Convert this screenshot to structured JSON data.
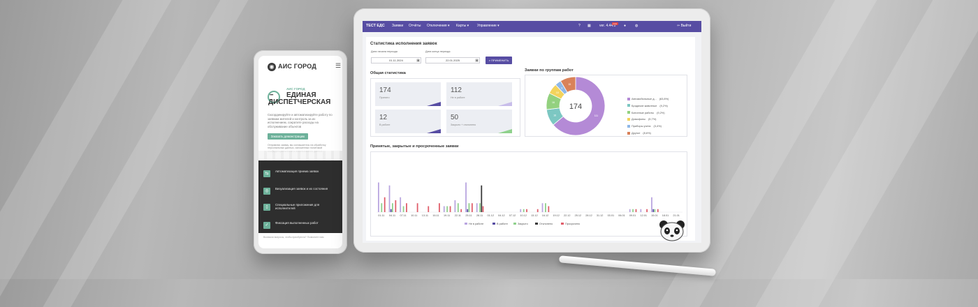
{
  "phone": {
    "logo": "АИС ГОРОД",
    "hero_kicker": "АИС ГОРОД",
    "hero_title_1": "ЕДИНАЯ",
    "hero_title_2": "ДИСПЕТЧЕРСКАЯ",
    "description": "Скоординируйте и автоматизируйте работу по заявкам жителей и контроль за их исполнением, сократите расходы на обслуживание объектов",
    "demo_button": "Заказать демонстрацию",
    "consent": "Отправляя заявку, вы соглашаетесь на обработку персональных данных, изложенных политикой конфиденциальности и использования данных",
    "features": [
      {
        "label": "Автоматизация приема заявок",
        "icon": "route-icon"
      },
      {
        "label": "Визуализация заявок и их состояния",
        "icon": "eye-icon"
      },
      {
        "label": "Специальные приложения для исполнителей",
        "icon": "phone-icon"
      },
      {
        "label": "Фиксация выполненных работ",
        "icon": "check-icon"
      }
    ],
    "footer": "Возникли вопросы, чтобы приобрести? Позвоните нам"
  },
  "app": {
    "nav": {
      "brand": "ТЕСТ ЕДС",
      "items": [
        "Заявки",
        "Отчёты",
        "Отключения ▾",
        "Карты ▾",
        "Управление ▾"
      ],
      "version": "ver. 4.44.0",
      "version_badge": "new",
      "logout": "Выйти"
    },
    "page_title": "Статистика исполнения заявок",
    "filters": {
      "start_label": "Дата начала периода",
      "start_value": "01.11.2024",
      "end_label": "Дата конца периода",
      "end_value": "22.01.2025",
      "apply_button": "ПРИМЕНИТЬ"
    },
    "general": {
      "title": "Общая статистика",
      "stats": [
        {
          "value": "174",
          "label": "Принято"
        },
        {
          "value": "112",
          "label": "Не в работе"
        },
        {
          "value": "12",
          "label": "В работе"
        },
        {
          "value": "50",
          "label": "Закрыто + отклонено"
        }
      ]
    },
    "groups": {
      "title": "Заявки по группам работ",
      "total": "174"
    },
    "bars": {
      "title": "Принятые, закрытые и просроченные заявки",
      "legend": [
        "Не в работе",
        "В работе",
        "Закрыто",
        "Отклонено",
        "Просрочено"
      ]
    }
  },
  "colors": {
    "brand": "#574da3",
    "accent_green": "#6db19a",
    "not_in_work": "#b9a6e0",
    "in_work": "#574da3",
    "closed": "#8fd18c",
    "rejected": "#3a3a3a",
    "overdue": "#e05e6b"
  },
  "chart_data": [
    {
      "type": "pie",
      "title": "Заявки по группам работ",
      "center_label": "174",
      "categories": [
        "Автомобильные д...",
        "Бродячие животные",
        "Батонные работы",
        "Домофоны",
        "Приборы учета",
        "Другое"
      ],
      "values": [
        63.8,
        9.2,
        9.2,
        5.7,
        3.4,
        8.6
      ],
      "value_labels": [
        "(63,8%)",
        "(9,2%)",
        "(9,2%)",
        "(5,7%)",
        "(3,4%)",
        "(8,6%)"
      ],
      "slice_labels": [
        "111",
        "16",
        "16",
        "10",
        "6",
        "15"
      ],
      "colors": [
        "#b48ad6",
        "#7cc7c2",
        "#93d17f",
        "#f3d35c",
        "#8fb8e8",
        "#d9825a"
      ]
    },
    {
      "type": "bar",
      "title": "Принятые, закрытые и просроченные заявки",
      "categories": [
        "01.11",
        "04.11",
        "07.11",
        "10.11",
        "13.11",
        "16.11",
        "19.11",
        "22.11",
        "25.11",
        "28.11",
        "01.12",
        "04.12",
        "07.12",
        "10.12",
        "13.12",
        "16.12",
        "19.12",
        "22.12",
        "25.12",
        "28.12",
        "31.12",
        "03.01",
        "06.01",
        "09.01",
        "12.01",
        "15.01",
        "18.01",
        "21.01"
      ],
      "series": [
        {
          "name": "Не в работе",
          "values": [
            10,
            9,
            5,
            0,
            0,
            0,
            2,
            4,
            10,
            3,
            0,
            0,
            0,
            1,
            0,
            3,
            0,
            0,
            0,
            0,
            0,
            0,
            0,
            1,
            1,
            5,
            0,
            0
          ]
        },
        {
          "name": "В работе",
          "values": [
            0,
            1,
            0,
            0,
            0,
            0,
            0,
            0,
            1,
            0,
            0,
            0,
            0,
            0,
            0,
            0,
            0,
            0,
            0,
            0,
            0,
            0,
            0,
            0,
            0,
            1,
            0,
            0
          ]
        },
        {
          "name": "Закрыто",
          "values": [
            3,
            3,
            2,
            0,
            0,
            0,
            2,
            3,
            3,
            3,
            0,
            0,
            0,
            1,
            0,
            3,
            0,
            0,
            0,
            0,
            0,
            0,
            0,
            1,
            0,
            1,
            0,
            0
          ]
        },
        {
          "name": "Отклонено",
          "values": [
            0,
            0,
            0,
            0,
            0,
            0,
            0,
            0,
            0,
            9,
            0,
            0,
            0,
            0,
            0,
            0,
            0,
            0,
            0,
            0,
            0,
            0,
            0,
            0,
            0,
            0,
            0,
            0
          ]
        },
        {
          "name": "Просрочено",
          "values": [
            5,
            4,
            3,
            3,
            2,
            3,
            2,
            1,
            3,
            2,
            0,
            0,
            0,
            1,
            1,
            2,
            0,
            0,
            0,
            0,
            0,
            0,
            0,
            1,
            1,
            1,
            0,
            0
          ]
        }
      ],
      "series_colors": [
        "#b9a6e0",
        "#574da3",
        "#8fd18c",
        "#3a3a3a",
        "#e05e6b"
      ],
      "ylim": [
        0,
        16
      ]
    }
  ]
}
